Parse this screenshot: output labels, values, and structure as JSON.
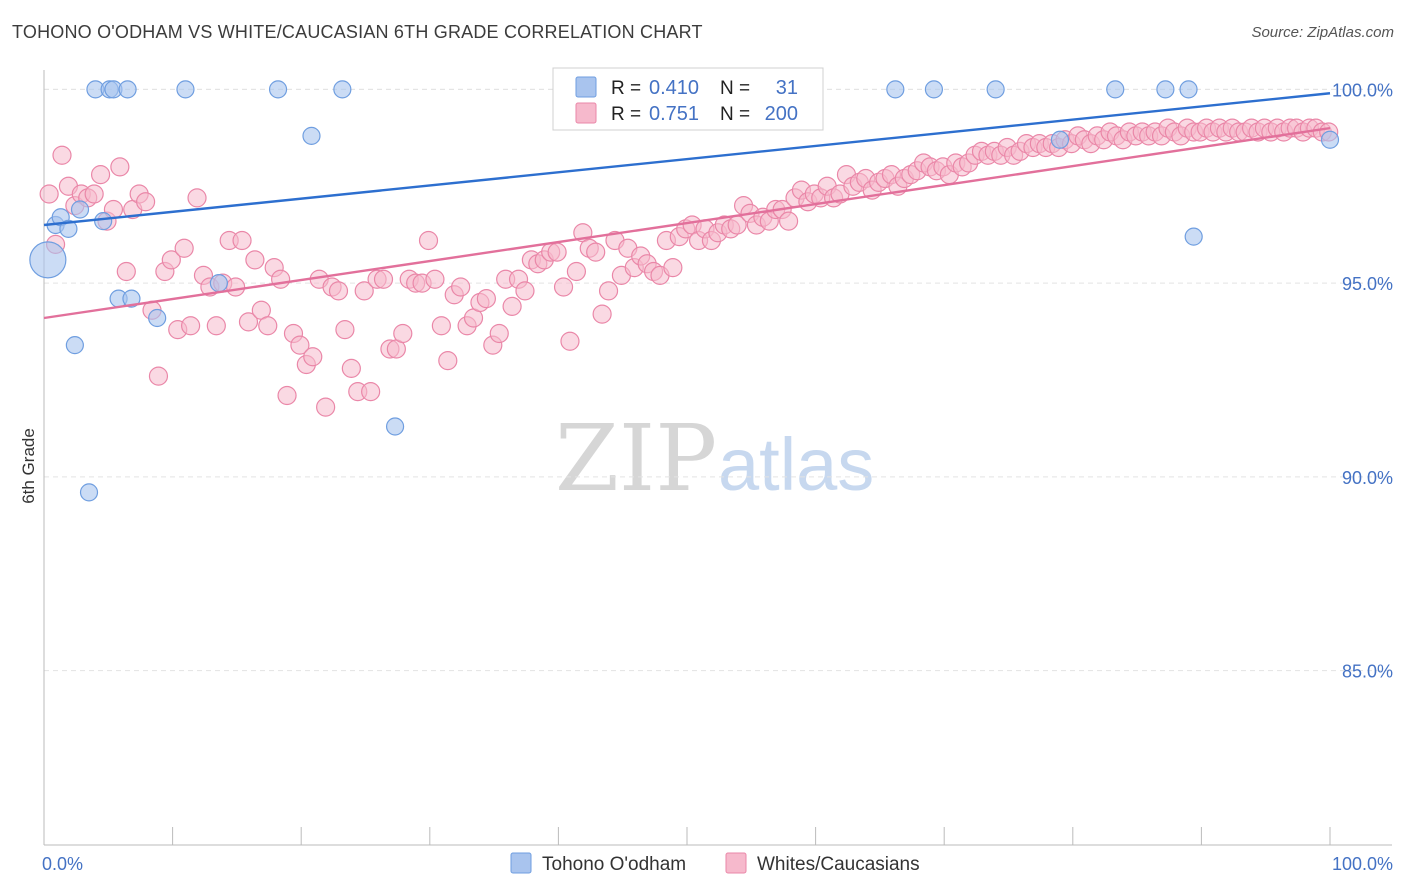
{
  "header": {
    "title": "TOHONO O'ODHAM VS WHITE/CAUCASIAN 6TH GRADE CORRELATION CHART",
    "source": "Source: ZipAtlas.com"
  },
  "watermark": {
    "zip": "ZIP",
    "atlas": "atlas"
  },
  "colors": {
    "blue_fill": "#a9c4ee",
    "blue_stroke": "#6f9ee0",
    "blue_line": "#2d6fcf",
    "pink_fill": "#f6b9cc",
    "pink_stroke": "#ea87a8",
    "pink_line": "#e2709b",
    "grid": "#e3e3e3",
    "tick_text": "#4472c4"
  },
  "stats_legend": {
    "rows": [
      {
        "r_label": "R =",
        "r_value": "0.410",
        "n_label": "N =",
        "n_value": "31"
      },
      {
        "r_label": "R =",
        "r_value": "0.751",
        "n_label": "N =",
        "n_value": "200"
      }
    ]
  },
  "bottom_legend": {
    "items": [
      {
        "label": "Tohono O'odham"
      },
      {
        "label": "Whites/Caucasians"
      }
    ]
  },
  "chart_data": {
    "type": "scatter",
    "title": "TOHONO O'ODHAM VS WHITE/CAUCASIAN 6TH GRADE CORRELATION CHART",
    "xlabel": "",
    "ylabel": "6th Grade",
    "xlim": [
      0,
      100
    ],
    "ylim": [
      80.5,
      100.5
    ],
    "x_tick_labels": [
      "0.0%",
      "100.0%"
    ],
    "y_ticks": [
      85,
      90,
      95,
      100
    ],
    "y_tick_labels": [
      "85.0%",
      "90.0%",
      "95.0%",
      "100.0%"
    ],
    "grid": "horizontal dashed",
    "legend_placement": "top-center and bottom",
    "series": [
      {
        "name": "Tohono O'odham",
        "R": 0.41,
        "N": 31,
        "trend": {
          "x": [
            0,
            100
          ],
          "y": [
            96.5,
            99.9
          ]
        },
        "points": [
          [
            0.3,
            95.6
          ],
          [
            0.9,
            96.5
          ],
          [
            1.3,
            96.7
          ],
          [
            1.9,
            96.4
          ],
          [
            2.4,
            93.4
          ],
          [
            2.8,
            96.9
          ],
          [
            3.5,
            89.6
          ],
          [
            4.0,
            100.0
          ],
          [
            4.6,
            96.6
          ],
          [
            5.1,
            100.0
          ],
          [
            5.4,
            100.0
          ],
          [
            5.8,
            94.6
          ],
          [
            6.5,
            100.0
          ],
          [
            6.8,
            94.6
          ],
          [
            8.8,
            94.1
          ],
          [
            11.0,
            100.0
          ],
          [
            13.6,
            95.0
          ],
          [
            18.2,
            100.0
          ],
          [
            20.8,
            98.8
          ],
          [
            23.2,
            100.0
          ],
          [
            27.3,
            91.3
          ],
          [
            47.5,
            100.0
          ],
          [
            66.2,
            100.0
          ],
          [
            69.2,
            100.0
          ],
          [
            74.0,
            100.0
          ],
          [
            79.0,
            98.7
          ],
          [
            83.3,
            100.0
          ],
          [
            87.2,
            100.0
          ],
          [
            89.0,
            100.0
          ],
          [
            89.4,
            96.2
          ],
          [
            100.0,
            98.7
          ]
        ]
      },
      {
        "name": "Whites/Caucasians",
        "R": 0.751,
        "N": 200,
        "trend": {
          "x": [
            0,
            100
          ],
          "y": [
            94.1,
            99.0
          ]
        },
        "points": [
          [
            0.4,
            97.3
          ],
          [
            0.9,
            96.0
          ],
          [
            1.4,
            98.3
          ],
          [
            1.9,
            97.5
          ],
          [
            2.4,
            97.0
          ],
          [
            2.9,
            97.3
          ],
          [
            3.4,
            97.2
          ],
          [
            3.9,
            97.3
          ],
          [
            4.4,
            97.8
          ],
          [
            4.9,
            96.6
          ],
          [
            5.4,
            96.9
          ],
          [
            5.9,
            98.0
          ],
          [
            6.4,
            95.3
          ],
          [
            6.9,
            96.9
          ],
          [
            7.4,
            97.3
          ],
          [
            7.9,
            97.1
          ],
          [
            8.4,
            94.3
          ],
          [
            8.9,
            92.6
          ],
          [
            9.4,
            95.3
          ],
          [
            9.9,
            95.6
          ],
          [
            10.4,
            93.8
          ],
          [
            10.9,
            95.9
          ],
          [
            11.4,
            93.9
          ],
          [
            11.9,
            97.2
          ],
          [
            12.4,
            95.2
          ],
          [
            12.9,
            94.9
          ],
          [
            13.4,
            93.9
          ],
          [
            13.9,
            95.0
          ],
          [
            14.4,
            96.1
          ],
          [
            14.9,
            94.9
          ],
          [
            15.4,
            96.1
          ],
          [
            15.9,
            94.0
          ],
          [
            16.4,
            95.6
          ],
          [
            16.9,
            94.3
          ],
          [
            17.4,
            93.9
          ],
          [
            17.9,
            95.4
          ],
          [
            18.4,
            95.1
          ],
          [
            18.9,
            92.1
          ],
          [
            19.4,
            93.7
          ],
          [
            19.9,
            93.4
          ],
          [
            20.4,
            92.9
          ],
          [
            20.9,
            93.1
          ],
          [
            21.4,
            95.1
          ],
          [
            21.9,
            91.8
          ],
          [
            22.4,
            94.9
          ],
          [
            22.9,
            94.8
          ],
          [
            23.4,
            93.8
          ],
          [
            23.9,
            92.8
          ],
          [
            24.4,
            92.2
          ],
          [
            24.9,
            94.8
          ],
          [
            25.4,
            92.2
          ],
          [
            25.9,
            95.1
          ],
          [
            26.4,
            95.1
          ],
          [
            26.9,
            93.3
          ],
          [
            27.4,
            93.3
          ],
          [
            27.9,
            93.7
          ],
          [
            28.4,
            95.1
          ],
          [
            28.9,
            95.0
          ],
          [
            29.4,
            95.0
          ],
          [
            29.9,
            96.1
          ],
          [
            30.4,
            95.1
          ],
          [
            30.9,
            93.9
          ],
          [
            31.4,
            93.0
          ],
          [
            31.9,
            94.7
          ],
          [
            32.4,
            94.9
          ],
          [
            32.9,
            93.9
          ],
          [
            33.4,
            94.1
          ],
          [
            33.9,
            94.5
          ],
          [
            34.4,
            94.6
          ],
          [
            34.9,
            93.4
          ],
          [
            35.4,
            93.7
          ],
          [
            35.9,
            95.1
          ],
          [
            36.4,
            94.4
          ],
          [
            36.9,
            95.1
          ],
          [
            37.4,
            94.8
          ],
          [
            37.9,
            95.6
          ],
          [
            38.4,
            95.5
          ],
          [
            38.9,
            95.6
          ],
          [
            39.4,
            95.8
          ],
          [
            39.9,
            95.8
          ],
          [
            40.4,
            94.9
          ],
          [
            40.9,
            93.5
          ],
          [
            41.4,
            95.3
          ],
          [
            41.9,
            96.3
          ],
          [
            42.4,
            95.9
          ],
          [
            42.9,
            95.8
          ],
          [
            43.4,
            94.2
          ],
          [
            43.9,
            94.8
          ],
          [
            44.4,
            96.1
          ],
          [
            44.9,
            95.2
          ],
          [
            45.4,
            95.9
          ],
          [
            45.9,
            95.4
          ],
          [
            46.4,
            95.7
          ],
          [
            46.9,
            95.5
          ],
          [
            47.4,
            95.3
          ],
          [
            47.9,
            95.2
          ],
          [
            48.4,
            96.1
          ],
          [
            48.9,
            95.4
          ],
          [
            49.4,
            96.2
          ],
          [
            49.9,
            96.4
          ],
          [
            50.4,
            96.5
          ],
          [
            50.9,
            96.1
          ],
          [
            51.4,
            96.4
          ],
          [
            51.9,
            96.1
          ],
          [
            52.4,
            96.3
          ],
          [
            52.9,
            96.5
          ],
          [
            53.4,
            96.4
          ],
          [
            53.9,
            96.5
          ],
          [
            54.4,
            97.0
          ],
          [
            54.9,
            96.8
          ],
          [
            55.4,
            96.5
          ],
          [
            55.9,
            96.7
          ],
          [
            56.4,
            96.6
          ],
          [
            56.9,
            96.9
          ],
          [
            57.4,
            96.9
          ],
          [
            57.9,
            96.6
          ],
          [
            58.4,
            97.2
          ],
          [
            58.9,
            97.4
          ],
          [
            59.4,
            97.1
          ],
          [
            59.9,
            97.3
          ],
          [
            60.4,
            97.2
          ],
          [
            60.9,
            97.5
          ],
          [
            61.4,
            97.2
          ],
          [
            61.9,
            97.3
          ],
          [
            62.4,
            97.8
          ],
          [
            62.9,
            97.5
          ],
          [
            63.4,
            97.6
          ],
          [
            63.9,
            97.7
          ],
          [
            64.4,
            97.4
          ],
          [
            64.9,
            97.6
          ],
          [
            65.4,
            97.7
          ],
          [
            65.9,
            97.8
          ],
          [
            66.4,
            97.5
          ],
          [
            66.9,
            97.7
          ],
          [
            67.4,
            97.8
          ],
          [
            67.9,
            97.9
          ],
          [
            68.4,
            98.1
          ],
          [
            68.9,
            98.0
          ],
          [
            69.4,
            97.9
          ],
          [
            69.9,
            98.0
          ],
          [
            70.4,
            97.8
          ],
          [
            70.9,
            98.1
          ],
          [
            71.4,
            98.0
          ],
          [
            71.9,
            98.1
          ],
          [
            72.4,
            98.3
          ],
          [
            72.9,
            98.4
          ],
          [
            73.4,
            98.3
          ],
          [
            73.9,
            98.4
          ],
          [
            74.4,
            98.3
          ],
          [
            74.9,
            98.5
          ],
          [
            75.4,
            98.3
          ],
          [
            75.9,
            98.4
          ],
          [
            76.4,
            98.6
          ],
          [
            76.9,
            98.5
          ],
          [
            77.4,
            98.6
          ],
          [
            77.9,
            98.5
          ],
          [
            78.4,
            98.6
          ],
          [
            78.9,
            98.5
          ],
          [
            79.4,
            98.7
          ],
          [
            79.9,
            98.6
          ],
          [
            80.4,
            98.8
          ],
          [
            80.9,
            98.7
          ],
          [
            81.4,
            98.6
          ],
          [
            81.9,
            98.8
          ],
          [
            82.4,
            98.7
          ],
          [
            82.9,
            98.9
          ],
          [
            83.4,
            98.8
          ],
          [
            83.9,
            98.7
          ],
          [
            84.4,
            98.9
          ],
          [
            84.9,
            98.8
          ],
          [
            85.4,
            98.9
          ],
          [
            85.9,
            98.8
          ],
          [
            86.4,
            98.9
          ],
          [
            86.9,
            98.8
          ],
          [
            87.4,
            99.0
          ],
          [
            87.9,
            98.9
          ],
          [
            88.4,
            98.8
          ],
          [
            88.9,
            99.0
          ],
          [
            89.4,
            98.9
          ],
          [
            89.9,
            98.9
          ],
          [
            90.4,
            99.0
          ],
          [
            90.9,
            98.9
          ],
          [
            91.4,
            99.0
          ],
          [
            91.9,
            98.9
          ],
          [
            92.4,
            99.0
          ],
          [
            92.9,
            98.9
          ],
          [
            93.4,
            98.9
          ],
          [
            93.9,
            99.0
          ],
          [
            94.4,
            98.9
          ],
          [
            94.9,
            99.0
          ],
          [
            95.4,
            98.9
          ],
          [
            95.9,
            99.0
          ],
          [
            96.4,
            98.9
          ],
          [
            96.9,
            99.0
          ],
          [
            97.4,
            99.0
          ],
          [
            97.9,
            98.9
          ],
          [
            98.4,
            99.0
          ],
          [
            98.9,
            99.0
          ],
          [
            99.4,
            98.9
          ],
          [
            99.9,
            98.9
          ]
        ]
      }
    ]
  }
}
